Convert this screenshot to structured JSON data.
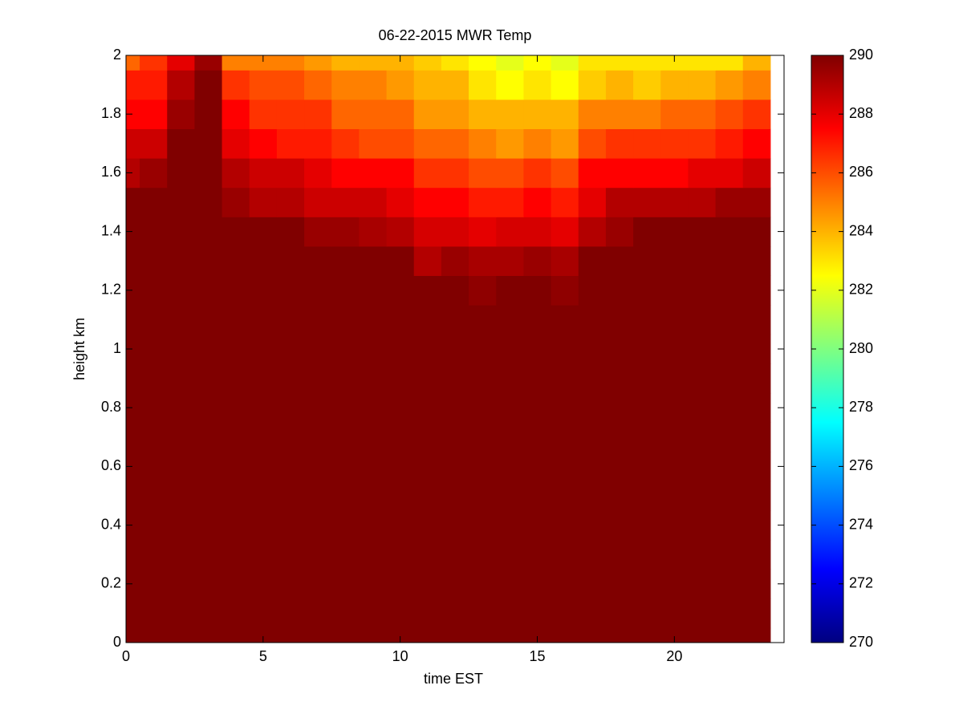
{
  "chart_data": {
    "type": "heatmap",
    "title": "06-22-2015 MWR Temp",
    "x_label": "time EST",
    "y_label": "height km",
    "x": [
      0,
      1,
      2,
      3,
      4,
      5,
      6,
      7,
      8,
      9,
      10,
      11,
      12,
      13,
      14,
      15,
      16,
      17,
      18,
      19,
      20,
      21,
      22,
      23
    ],
    "y": [
      0,
      0.1,
      0.2,
      0.3,
      0.4,
      0.5,
      0.6,
      0.7,
      0.8,
      0.9,
      1,
      1.1,
      1.2,
      1.3,
      1.4,
      1.5,
      1.6,
      1.7,
      1.8,
      1.9,
      2
    ],
    "z": [
      [
        290,
        290,
        290,
        290,
        290,
        290,
        290,
        290,
        290,
        290,
        290,
        290,
        290,
        290,
        290,
        290,
        290,
        290,
        290,
        290,
        290,
        290,
        290,
        290
      ],
      [
        290,
        290,
        290,
        290,
        290,
        290,
        290,
        290,
        290,
        290,
        290,
        290,
        290,
        290,
        290,
        290,
        290,
        290,
        290,
        290,
        290,
        290,
        290,
        290
      ],
      [
        290,
        290,
        290,
        290,
        290,
        290,
        290,
        290,
        290,
        290,
        290,
        290,
        290,
        290,
        290,
        290,
        290,
        290,
        290,
        290,
        290,
        290,
        290,
        290
      ],
      [
        290,
        290,
        290,
        290,
        290,
        290,
        290,
        290,
        290,
        290,
        290,
        290,
        290,
        290,
        290,
        290,
        290,
        290,
        290,
        290,
        290,
        290,
        290,
        290
      ],
      [
        290,
        290,
        290,
        290,
        290,
        290,
        290,
        290,
        290,
        290,
        290,
        290,
        290,
        290,
        290,
        290,
        290,
        290,
        290,
        290,
        290,
        290,
        290,
        290
      ],
      [
        290,
        290,
        290,
        290,
        290,
        290,
        290,
        290,
        290,
        290,
        290,
        290,
        290,
        290,
        290,
        290,
        290,
        290,
        290,
        290,
        290,
        290,
        290,
        290
      ],
      [
        290,
        290,
        290,
        290,
        290,
        290,
        290,
        290,
        290,
        290,
        290,
        290,
        290,
        290,
        290,
        290,
        290,
        290,
        290,
        290,
        290,
        290,
        290,
        290
      ],
      [
        290,
        290,
        290,
        290,
        290,
        290,
        290,
        290,
        290,
        290,
        290,
        290,
        290,
        290,
        290,
        290,
        290,
        290,
        290,
        290,
        290,
        290,
        290,
        290
      ],
      [
        290,
        290,
        290,
        290,
        290,
        290,
        290,
        290,
        290,
        290,
        290,
        290,
        290,
        290,
        290,
        290,
        290,
        290,
        290,
        290,
        290,
        290,
        290,
        290
      ],
      [
        290,
        290,
        290,
        290,
        290,
        290,
        290,
        290,
        290,
        290,
        290,
        290,
        290,
        290,
        290,
        290,
        290,
        290,
        290,
        290,
        290,
        290,
        290,
        290
      ],
      [
        290,
        290,
        290,
        290,
        290,
        290,
        290,
        290,
        290,
        290,
        290,
        290,
        290,
        290,
        290,
        290,
        290,
        290,
        290,
        290,
        290,
        290,
        290,
        290
      ],
      [
        290,
        290,
        290,
        290,
        290,
        290,
        290,
        290,
        290,
        290,
        290,
        290,
        290,
        290,
        290,
        290,
        290,
        290,
        290,
        290,
        290,
        290,
        290,
        290
      ],
      [
        290,
        290,
        290,
        290,
        290,
        290,
        290,
        290,
        290,
        290,
        290,
        290,
        290,
        289.7,
        290,
        290,
        289.7,
        290,
        290,
        290,
        290,
        290,
        290,
        290
      ],
      [
        290,
        290,
        290,
        290,
        290,
        290,
        290,
        290,
        290,
        290,
        290,
        289,
        289.5,
        289.2,
        289.2,
        289.5,
        289.2,
        290,
        290,
        290,
        290,
        290,
        290,
        290
      ],
      [
        290,
        290,
        290,
        290,
        290,
        290,
        290,
        289.5,
        289.5,
        289.2,
        289,
        288.3,
        288.3,
        288,
        288.3,
        288.3,
        288,
        289,
        289.5,
        290,
        290,
        290,
        290,
        290
      ],
      [
        290,
        290,
        290,
        290,
        289.5,
        289,
        289,
        288.5,
        288.5,
        288.5,
        288,
        287.5,
        287.5,
        287,
        287,
        287.5,
        287,
        288,
        289,
        289,
        289,
        289,
        289.5,
        289.5
      ],
      [
        289,
        289.5,
        290,
        290,
        289,
        288.5,
        288.5,
        288,
        287.5,
        287.5,
        287.5,
        286.5,
        286.5,
        286,
        286,
        286.5,
        286,
        287.5,
        287.5,
        287.5,
        287.5,
        288,
        288,
        288.5
      ],
      [
        288.5,
        288.5,
        290,
        290,
        288,
        287.5,
        287,
        287,
        286.5,
        286,
        286,
        285.5,
        285.5,
        285,
        284.5,
        285,
        284.5,
        286,
        286.5,
        286.5,
        286.5,
        286.5,
        287,
        287.5
      ],
      [
        287.5,
        287.5,
        289.5,
        290,
        287.5,
        286.5,
        286.5,
        286.5,
        285.5,
        285.5,
        285.5,
        284.5,
        284.5,
        284,
        284,
        284,
        284,
        285,
        285,
        285,
        285.5,
        285.5,
        286,
        286.5
      ],
      [
        287,
        287,
        289,
        290,
        286.5,
        286,
        286,
        285.5,
        285,
        285,
        284.5,
        284,
        284,
        283,
        282.5,
        283,
        282.5,
        283.5,
        284,
        283.5,
        284,
        284,
        284.5,
        285
      ],
      [
        285.5,
        286.5,
        288,
        289.5,
        285,
        285,
        285,
        284.5,
        284,
        284,
        284,
        283.5,
        283,
        282.5,
        282,
        282.5,
        282,
        283,
        283,
        283,
        283,
        283,
        283,
        284
      ]
    ],
    "colormap": "jet",
    "clim": [
      270,
      290
    ],
    "xlim": [
      0,
      24
    ],
    "ylim": [
      0,
      2
    ],
    "xticks": [
      0,
      5,
      10,
      15,
      20
    ],
    "yticks": [
      0,
      0.2,
      0.4,
      0.6,
      0.8,
      1,
      1.2,
      1.4,
      1.6,
      1.8,
      2
    ],
    "colorbar_ticks": [
      270,
      272,
      274,
      276,
      278,
      280,
      282,
      284,
      286,
      288,
      290
    ]
  }
}
